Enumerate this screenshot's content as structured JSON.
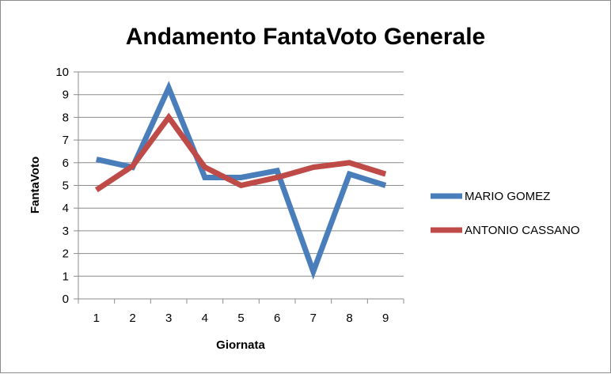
{
  "chart_data": {
    "type": "line",
    "title": "Andamento FantaVoto Generale",
    "xlabel": "Giornata",
    "ylabel": "FantaVoto",
    "categories": [
      "1",
      "2",
      "3",
      "4",
      "5",
      "6",
      "7",
      "8",
      "9"
    ],
    "y_ticks": [
      "0",
      "1",
      "2",
      "3",
      "4",
      "5",
      "6",
      "7",
      "8",
      "9",
      "10"
    ],
    "ylim": [
      0,
      10
    ],
    "grid": true,
    "legend_position": "right",
    "series": [
      {
        "name": "MARIO GOMEZ",
        "color": "#4a7ebb",
        "values": [
          6.15,
          5.8,
          9.3,
          5.35,
          5.35,
          5.65,
          1.2,
          5.5,
          5.0
        ]
      },
      {
        "name": "ANTONIO CASSANO",
        "color": "#be4b48",
        "values": [
          4.8,
          5.85,
          8.0,
          5.8,
          5.0,
          5.35,
          5.8,
          6.0,
          5.5
        ]
      }
    ]
  }
}
